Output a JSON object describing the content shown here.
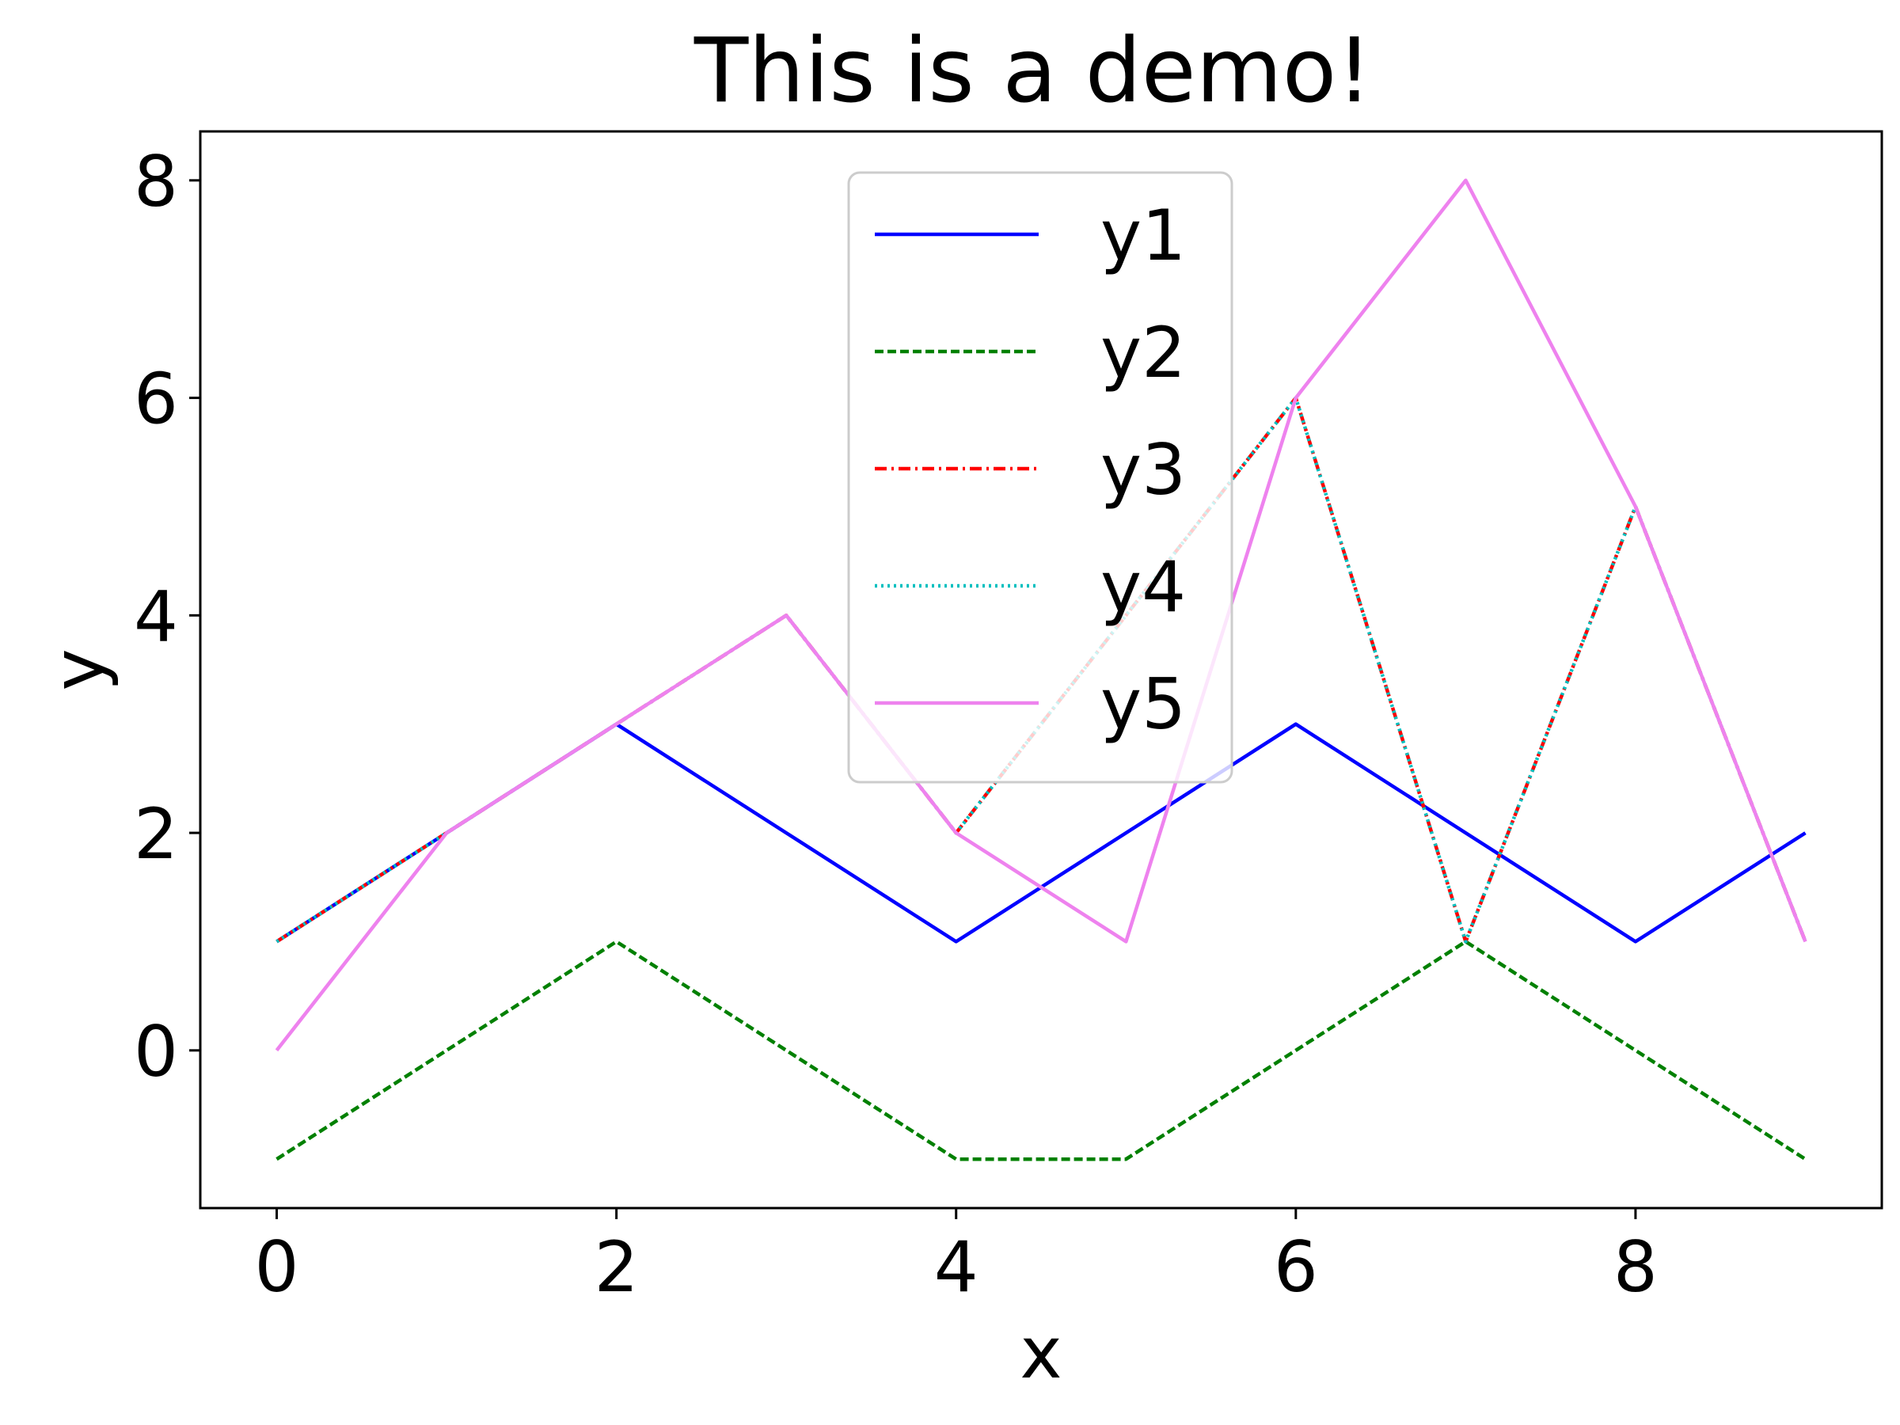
{
  "chart_data": {
    "type": "line",
    "title": "This is a demo!",
    "xlabel": "x",
    "ylabel": "y",
    "xlim": [
      -0.45,
      9.45
    ],
    "ylim": [
      -1.45,
      8.45
    ],
    "xticks": [
      0,
      2,
      4,
      6,
      8
    ],
    "yticks": [
      0,
      2,
      4,
      6,
      8
    ],
    "grid": false,
    "legend_position": "top-center",
    "x": [
      0,
      1,
      2,
      3,
      4,
      5,
      6,
      7,
      8,
      9
    ],
    "series": [
      {
        "name": "y1",
        "color": "#0000ff",
        "style": "solid",
        "values": [
          1,
          2,
          3,
          2,
          1,
          2,
          3,
          2,
          1,
          2
        ]
      },
      {
        "name": "y2",
        "color": "#008000",
        "style": "dashed",
        "values": [
          -1,
          0,
          1,
          0,
          -1,
          -1,
          0,
          1,
          0,
          -1
        ]
      },
      {
        "name": "y3",
        "color": "#ff0000",
        "style": "dashdot",
        "values": [
          1,
          2,
          3,
          4,
          2,
          4,
          6,
          1,
          5,
          1
        ]
      },
      {
        "name": "y4",
        "color": "#00bfbf",
        "style": "dotted",
        "values": [
          1,
          2,
          3,
          4,
          2,
          4,
          6,
          1,
          5,
          1
        ]
      },
      {
        "name": "y5",
        "color": "#ee82ee",
        "style": "solid",
        "values": [
          0,
          2,
          3,
          4,
          2,
          1,
          6,
          8,
          5,
          1
        ]
      }
    ]
  }
}
